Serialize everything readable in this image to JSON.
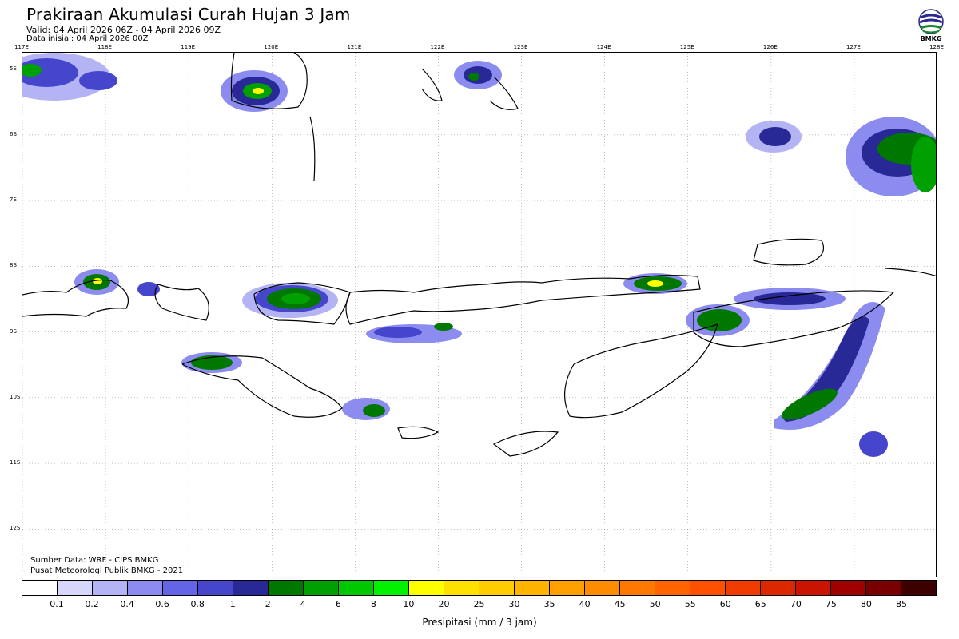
{
  "header": {
    "title": "Prakiraan Akumulasi Curah Hujan 3 Jam",
    "valid": "Valid: 04 April 2026 06Z - 04 April 2026 09Z",
    "initial": "Data inisial: 04 April 2026 00Z",
    "logo_text": "BMKG"
  },
  "map": {
    "lon_labels": [
      "117E",
      "118E",
      "119E",
      "120E",
      "121E",
      "122E",
      "123E",
      "124E",
      "125E",
      "126E",
      "127E",
      "128E"
    ],
    "lat_labels": [
      "5S",
      "6S",
      "7S",
      "8S",
      "9S",
      "10S",
      "11S",
      "12S"
    ],
    "extent": {
      "lon": [
        117,
        128
      ],
      "lat": [
        -4.75,
        -12.75
      ]
    }
  },
  "credits": {
    "source": "Sumber Data: WRF - CIPS BMKG",
    "center": "Pusat Meteorologi Publik BMKG - 2021"
  },
  "legend": {
    "title": "Presipitasi (mm / 3 jam)",
    "ticks": [
      "0.1",
      "0.2",
      "0.4",
      "0.6",
      "0.8",
      "1",
      "2",
      "4",
      "6",
      "8",
      "10",
      "20",
      "25",
      "30",
      "35",
      "40",
      "45",
      "50",
      "55",
      "60",
      "65",
      "70",
      "75",
      "80",
      "85"
    ],
    "colors": [
      "#ffffff",
      "#d7d7fb",
      "#b4b4f5",
      "#8c8cf0",
      "#6464e6",
      "#4646cc",
      "#282896",
      "#007800",
      "#00a000",
      "#00c800",
      "#00f000",
      "#ffff00",
      "#ffe100",
      "#ffcd00",
      "#ffb400",
      "#ffa000",
      "#ff8c00",
      "#ff7800",
      "#ff6400",
      "#ff5000",
      "#f03c00",
      "#dc2800",
      "#c81400",
      "#a00000",
      "#780000",
      "#3c0000"
    ]
  }
}
